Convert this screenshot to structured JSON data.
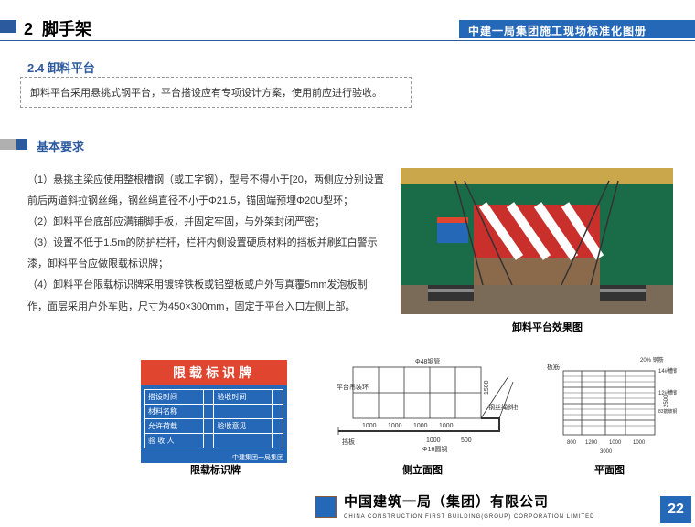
{
  "header": {
    "section_num": "2",
    "section_title": "脚手架",
    "ribbon": "中建一局集团施工现场标准化图册"
  },
  "subsection": {
    "num": "2.4",
    "title": "卸料平台"
  },
  "intro": "卸料平台采用悬挑式钢平台，平台搭设应有专项设计方案，使用前应进行验收。",
  "req_title": "基本要求",
  "requirements": [
    "（1）悬挑主梁应使用整根槽钢（或工字钢），型号不得小于[20，两侧应分别设置前后两道斜拉钢丝绳，钢丝绳直径不小于Φ21.5，锚固端预埋Φ20U型环；",
    "（2）卸料平台底部应满铺脚手板，并固定牢固，与外架封闭严密；",
    "（3）设置不低于1.5m的防护栏杆，栏杆内侧设置硬质材料的挡板并刷红白警示漆，卸料平台应做限载标识牌；",
    "（4）卸料平台限载标识牌采用镀锌铁板或铝塑板或户外写真覆5mm发泡板制作，面层采用户外车贴，尺寸为450×300mm，固定于平台入口左侧上部。"
  ],
  "photo_caption": "卸料平台效果图",
  "sign": {
    "title": "限载标识牌",
    "rows": [
      [
        "搭设时间",
        "",
        "验收时间",
        ""
      ],
      [
        "材料名称",
        "",
        "",
        ""
      ],
      [
        "允许荷载",
        "",
        "验收意见",
        ""
      ],
      [
        "验 收 人",
        "",
        "",
        ""
      ]
    ],
    "footer": "中建集团一局集团",
    "caption": "限载标识牌"
  },
  "diag1": {
    "caption": "侧立面图",
    "labels": {
      "pipe": "Φ48钢管",
      "ring": "平台吊装环",
      "cable": "钢丝绳斜拉环",
      "baffle": "挡板",
      "steel": "Φ16圆钢"
    },
    "dims": [
      "1000",
      "1000",
      "1000",
      "1000",
      "1000",
      "500"
    ],
    "height": "1500"
  },
  "diag2": {
    "caption": "平面图",
    "labels": {
      "corner": "板筋",
      "channel": "14#槽钢",
      "floor": "12#槽钢",
      "mesh": "83筋玻钢板与槽钢焊接",
      "pct": "20%\n钢筋"
    },
    "dims_h": [
      "800",
      "1200",
      "1000",
      "1000",
      "3000"
    ],
    "dims_v": [
      "2500"
    ]
  },
  "footer": {
    "company": "中国建筑一局（集团）有限公司",
    "company_en": "CHINA CONSTRUCTION FIRST BUILDING(GROUP) CORPORATION LIMITED"
  },
  "page": "22",
  "colors": {
    "blue": "#2668b8",
    "red": "#e04530"
  }
}
